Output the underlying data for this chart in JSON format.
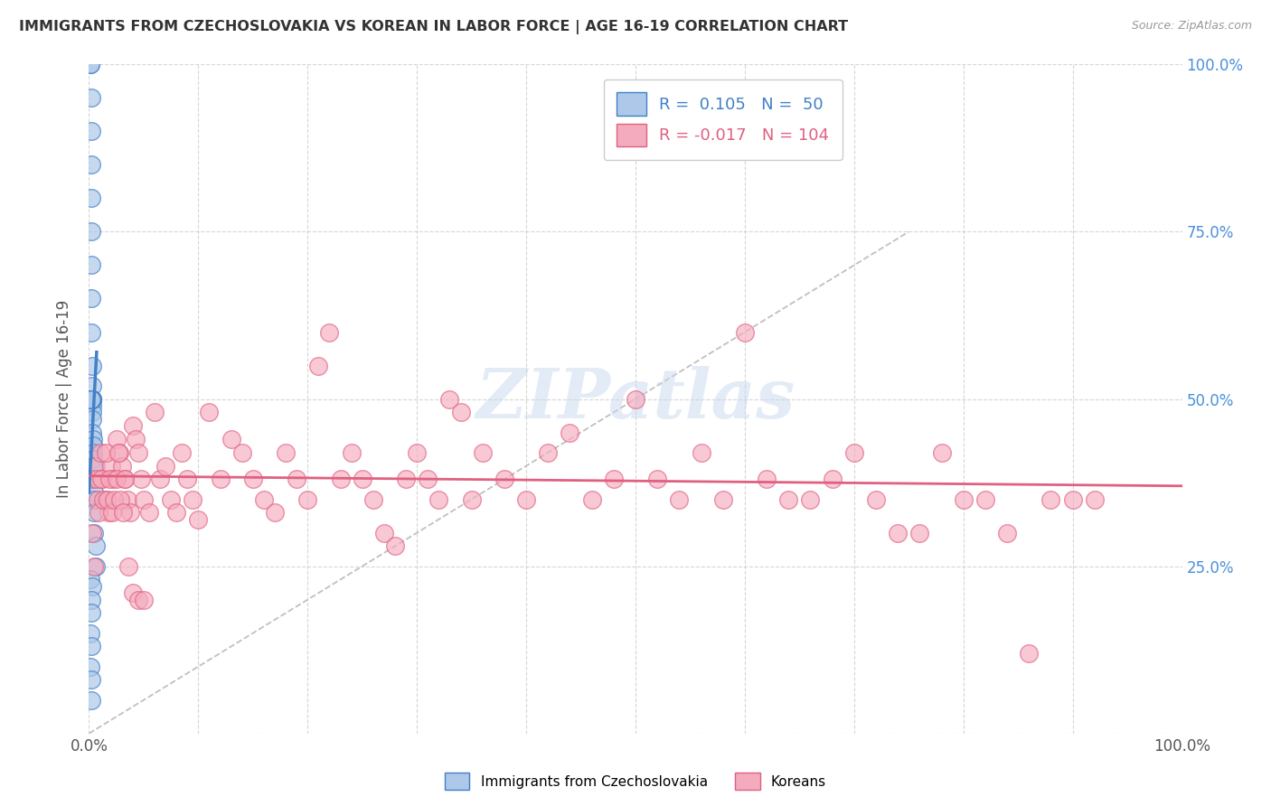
{
  "title": "IMMIGRANTS FROM CZECHOSLOVAKIA VS KOREAN IN LABOR FORCE | AGE 16-19 CORRELATION CHART",
  "source": "Source: ZipAtlas.com",
  "ylabel": "In Labor Force | Age 16-19",
  "xlim": [
    0.0,
    1.0
  ],
  "ylim": [
    0.0,
    1.0
  ],
  "xtick_positions": [
    0.0,
    0.1,
    0.2,
    0.3,
    0.4,
    0.5,
    0.6,
    0.7,
    0.8,
    0.9,
    1.0
  ],
  "xticklabels": [
    "0.0%",
    "",
    "",
    "",
    "",
    "",
    "",
    "",
    "",
    "",
    "100.0%"
  ],
  "ytick_positions": [
    0.0,
    0.25,
    0.5,
    0.75,
    1.0
  ],
  "yticklabels_right": [
    "",
    "25.0%",
    "50.0%",
    "75.0%",
    "100.0%"
  ],
  "legend_R1": "0.105",
  "legend_N1": "50",
  "legend_R2": "-0.017",
  "legend_N2": "104",
  "watermark": "ZIPatlas",
  "bg_color": "#ffffff",
  "grid_color": "#cccccc",
  "scatter_czech_color": "#adc8e8",
  "scatter_korean_color": "#f5abbe",
  "trend_czech_color": "#4080c8",
  "trend_korean_color": "#e06080",
  "diagonal_color": "#c0c0c0",
  "czech_x": [
    0.001,
    0.001,
    0.002,
    0.002,
    0.002,
    0.002,
    0.002,
    0.002,
    0.002,
    0.002,
    0.003,
    0.003,
    0.003,
    0.003,
    0.003,
    0.003,
    0.003,
    0.003,
    0.004,
    0.004,
    0.004,
    0.004,
    0.004,
    0.004,
    0.005,
    0.005,
    0.005,
    0.005,
    0.006,
    0.006,
    0.001,
    0.002,
    0.002,
    0.003,
    0.002,
    0.001,
    0.002,
    0.003,
    0.002,
    0.002,
    0.001,
    0.003,
    0.002,
    0.002,
    0.001,
    0.002,
    0.001,
    0.002,
    0.002,
    0.002
  ],
  "czech_y": [
    1.0,
    1.0,
    0.95,
    0.9,
    0.85,
    0.8,
    0.75,
    0.7,
    0.65,
    0.6,
    0.55,
    0.52,
    0.5,
    0.5,
    0.49,
    0.48,
    0.47,
    0.45,
    0.44,
    0.43,
    0.42,
    0.41,
    0.4,
    0.38,
    0.36,
    0.35,
    0.33,
    0.3,
    0.28,
    0.25,
    0.5,
    0.5,
    0.5,
    0.5,
    0.5,
    0.5,
    0.5,
    0.5,
    0.5,
    0.5,
    0.23,
    0.22,
    0.2,
    0.18,
    0.15,
    0.13,
    0.1,
    0.08,
    0.05,
    0.5
  ],
  "korean_x": [
    0.004,
    0.006,
    0.008,
    0.01,
    0.012,
    0.015,
    0.018,
    0.02,
    0.022,
    0.025,
    0.028,
    0.03,
    0.033,
    0.035,
    0.038,
    0.04,
    0.043,
    0.045,
    0.048,
    0.05,
    0.055,
    0.06,
    0.065,
    0.07,
    0.075,
    0.08,
    0.085,
    0.09,
    0.095,
    0.1,
    0.11,
    0.12,
    0.13,
    0.14,
    0.15,
    0.16,
    0.17,
    0.18,
    0.19,
    0.2,
    0.21,
    0.22,
    0.23,
    0.24,
    0.25,
    0.26,
    0.27,
    0.28,
    0.29,
    0.3,
    0.31,
    0.32,
    0.33,
    0.34,
    0.35,
    0.36,
    0.38,
    0.4,
    0.42,
    0.44,
    0.46,
    0.48,
    0.5,
    0.52,
    0.54,
    0.56,
    0.58,
    0.6,
    0.62,
    0.64,
    0.66,
    0.68,
    0.7,
    0.72,
    0.74,
    0.76,
    0.78,
    0.8,
    0.82,
    0.84,
    0.86,
    0.88,
    0.9,
    0.92,
    0.003,
    0.005,
    0.007,
    0.009,
    0.011,
    0.013,
    0.015,
    0.017,
    0.019,
    0.021,
    0.023,
    0.025,
    0.027,
    0.029,
    0.031,
    0.033,
    0.036,
    0.04,
    0.045,
    0.05
  ],
  "korean_y": [
    0.38,
    0.4,
    0.35,
    0.42,
    0.38,
    0.35,
    0.33,
    0.4,
    0.38,
    0.44,
    0.42,
    0.4,
    0.38,
    0.35,
    0.33,
    0.46,
    0.44,
    0.42,
    0.38,
    0.35,
    0.33,
    0.48,
    0.38,
    0.4,
    0.35,
    0.33,
    0.42,
    0.38,
    0.35,
    0.32,
    0.48,
    0.38,
    0.44,
    0.42,
    0.38,
    0.35,
    0.33,
    0.42,
    0.38,
    0.35,
    0.55,
    0.6,
    0.38,
    0.42,
    0.38,
    0.35,
    0.3,
    0.28,
    0.38,
    0.42,
    0.38,
    0.35,
    0.5,
    0.48,
    0.35,
    0.42,
    0.38,
    0.35,
    0.42,
    0.45,
    0.35,
    0.38,
    0.5,
    0.38,
    0.35,
    0.42,
    0.35,
    0.6,
    0.38,
    0.35,
    0.35,
    0.38,
    0.42,
    0.35,
    0.3,
    0.3,
    0.42,
    0.35,
    0.35,
    0.3,
    0.12,
    0.35,
    0.35,
    0.35,
    0.3,
    0.25,
    0.38,
    0.33,
    0.38,
    0.35,
    0.42,
    0.35,
    0.38,
    0.33,
    0.35,
    0.38,
    0.42,
    0.35,
    0.33,
    0.38,
    0.25,
    0.21,
    0.2,
    0.2
  ]
}
